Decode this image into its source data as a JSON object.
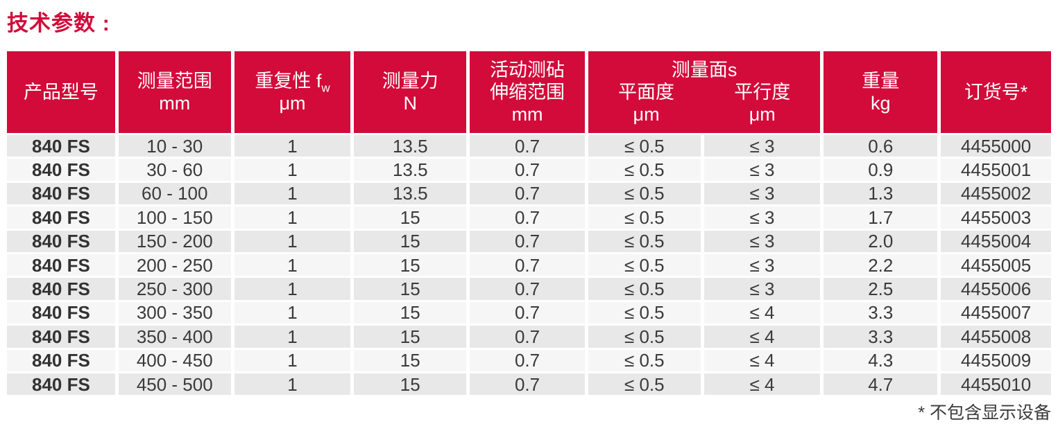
{
  "page": {
    "title": "技术参数 :",
    "footnote": "* 不包含显示设备"
  },
  "colors": {
    "accent_red": "#D20B3A",
    "row_dark": "#E8E8E8",
    "row_light": "#F6F6F6",
    "text": "#3A3A3A"
  },
  "table": {
    "header": {
      "product": "产品型号",
      "range": {
        "l1": "测量范围",
        "l2": "mm"
      },
      "repeatability": {
        "l1": "重复性 f",
        "sub": "w",
        "l2": "μm"
      },
      "force": {
        "l1": "测量力",
        "l2": "N"
      },
      "anvil": {
        "l1": "活动测砧",
        "l2": "伸缩范围",
        "l3": "mm"
      },
      "surfaces": {
        "group": "测量面s",
        "flatness": {
          "l1": "平面度",
          "l2": "μm"
        },
        "parallelism": {
          "l1": "平行度",
          "l2": "μm"
        }
      },
      "weight": {
        "l1": "重量",
        "l2": "kg"
      },
      "order": "订货号*"
    },
    "rows": [
      {
        "model": "840 FS",
        "range": "10 - 30",
        "repeatability": "1",
        "force": "13.5",
        "anvil": "0.7",
        "flatness": "≤ 0.5",
        "parallelism": "≤ 3",
        "weight": "0.6",
        "order": "4455000"
      },
      {
        "model": "840 FS",
        "range": "30 - 60",
        "repeatability": "1",
        "force": "13.5",
        "anvil": "0.7",
        "flatness": "≤ 0.5",
        "parallelism": "≤ 3",
        "weight": "0.9",
        "order": "4455001"
      },
      {
        "model": "840 FS",
        "range": "60 - 100",
        "repeatability": "1",
        "force": "13.5",
        "anvil": "0.7",
        "flatness": "≤ 0.5",
        "parallelism": "≤ 3",
        "weight": "1.3",
        "order": "4455002"
      },
      {
        "model": "840 FS",
        "range": "100 - 150",
        "repeatability": "1",
        "force": "15",
        "anvil": "0.7",
        "flatness": "≤ 0.5",
        "parallelism": "≤ 3",
        "weight": "1.7",
        "order": "4455003"
      },
      {
        "model": "840 FS",
        "range": "150 - 200",
        "repeatability": "1",
        "force": "15",
        "anvil": "0.7",
        "flatness": "≤ 0.5",
        "parallelism": "≤ 3",
        "weight": "2.0",
        "order": "4455004"
      },
      {
        "model": "840 FS",
        "range": "200 - 250",
        "repeatability": "1",
        "force": "15",
        "anvil": "0.7",
        "flatness": "≤ 0.5",
        "parallelism": "≤ 3",
        "weight": "2.2",
        "order": "4455005"
      },
      {
        "model": "840 FS",
        "range": "250 - 300",
        "repeatability": "1",
        "force": "15",
        "anvil": "0.7",
        "flatness": "≤ 0.5",
        "parallelism": "≤ 3",
        "weight": "2.5",
        "order": "4455006"
      },
      {
        "model": "840 FS",
        "range": "300 - 350",
        "repeatability": "1",
        "force": "15",
        "anvil": "0.7",
        "flatness": "≤ 0.5",
        "parallelism": "≤ 4",
        "weight": "3.3",
        "order": "4455007"
      },
      {
        "model": "840 FS",
        "range": "350 - 400",
        "repeatability": "1",
        "force": "15",
        "anvil": "0.7",
        "flatness": "≤ 0.5",
        "parallelism": "≤ 4",
        "weight": "3.3",
        "order": "4455008"
      },
      {
        "model": "840 FS",
        "range": "400 - 450",
        "repeatability": "1",
        "force": "15",
        "anvil": "0.7",
        "flatness": "≤ 0.5",
        "parallelism": "≤ 4",
        "weight": "4.3",
        "order": "4455009"
      },
      {
        "model": "840 FS",
        "range": "450 - 500",
        "repeatability": "1",
        "force": "15",
        "anvil": "0.7",
        "flatness": "≤ 0.5",
        "parallelism": "≤ 4",
        "weight": "4.7",
        "order": "4455010"
      }
    ]
  }
}
